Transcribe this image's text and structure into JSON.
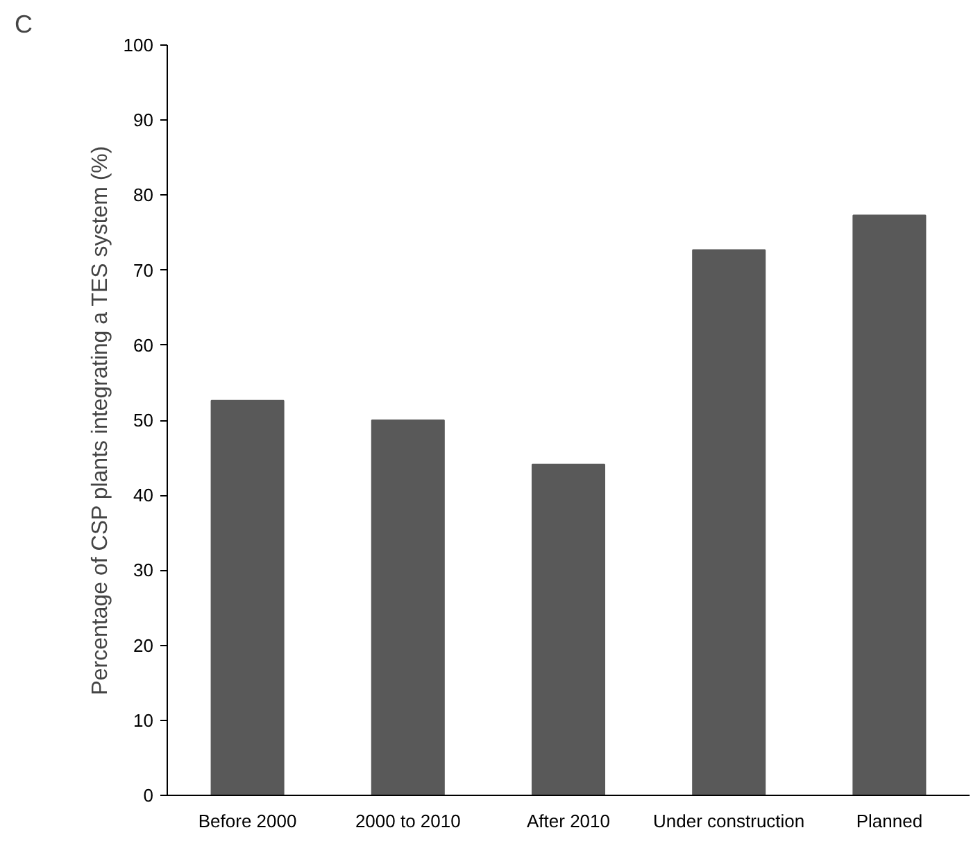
{
  "chart_data": {
    "type": "bar",
    "categories": [
      "Before 2000",
      "2000 to 2010",
      "After 2010",
      "Under construction",
      "Planned"
    ],
    "values": [
      52.6,
      50,
      44.1,
      72.7,
      77.3
    ],
    "color": "#595959",
    "ylabel": "Percentage of CSP plants integrating a TES system (%)",
    "ylim": [
      0,
      100
    ],
    "yticks": [
      0,
      10,
      20,
      30,
      40,
      50,
      60,
      70,
      80,
      90,
      100
    ],
    "grid": false,
    "annotations": [
      "C"
    ]
  }
}
